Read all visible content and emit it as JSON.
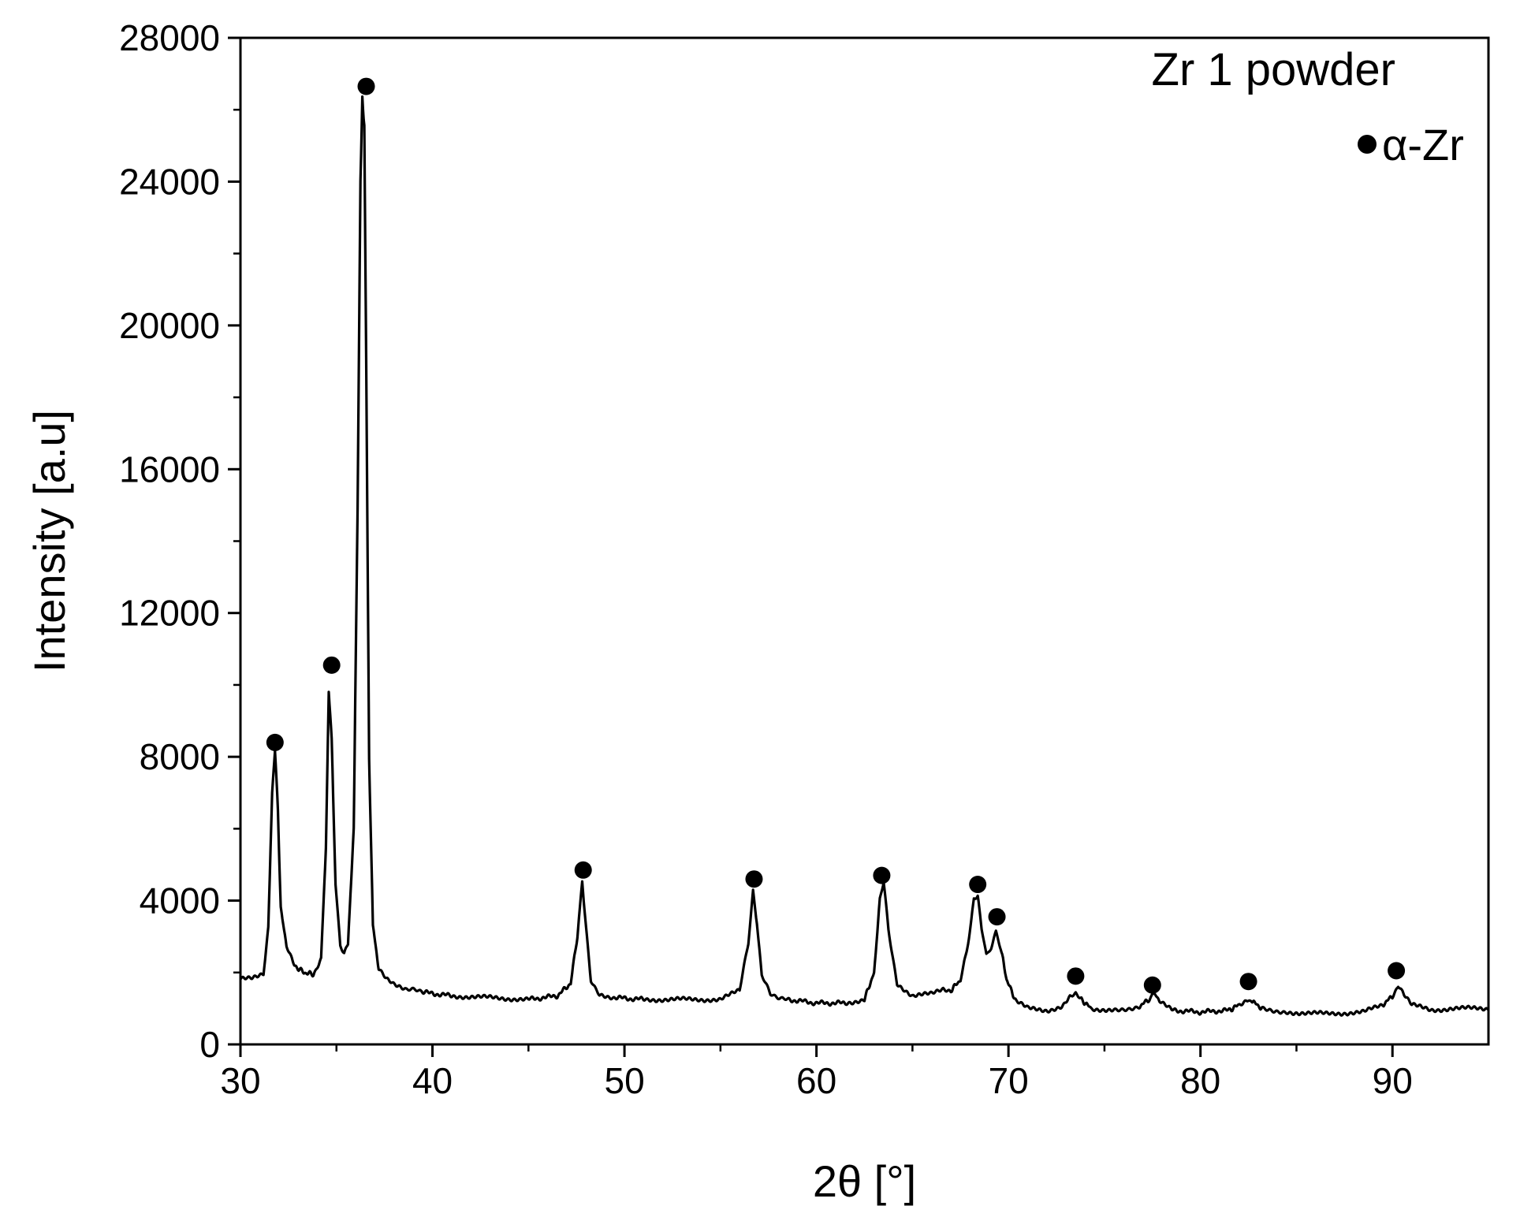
{
  "chart_data": {
    "type": "line",
    "title": "Zr 1 powder",
    "xlabel": "2θ [°]",
    "ylabel": "Intensity [a.u]",
    "xlim": [
      30,
      95
    ],
    "ylim": [
      0,
      28000
    ],
    "x_ticks": [
      30,
      40,
      50,
      60,
      70,
      80,
      90
    ],
    "y_ticks": [
      0,
      4000,
      8000,
      12000,
      16000,
      20000,
      24000,
      28000
    ],
    "grid": false,
    "legend": {
      "placement": "top-right",
      "marker": "●",
      "label": "α-Zr"
    },
    "series": [
      {
        "color": "#000000",
        "x": [
          30.0,
          30.6,
          31.2,
          31.45,
          31.65,
          31.8,
          31.95,
          32.1,
          32.4,
          32.8,
          33.3,
          33.8,
          34.2,
          34.45,
          34.6,
          34.75,
          34.95,
          35.2,
          35.4,
          35.6,
          35.9,
          36.1,
          36.25,
          36.35,
          36.45,
          36.55,
          36.7,
          36.9,
          37.2,
          37.6,
          38.0,
          38.6,
          39.5,
          41.0,
          43.0,
          45.0,
          46.5,
          47.2,
          47.55,
          47.8,
          48.0,
          48.25,
          48.7,
          49.5,
          51.0,
          53.0,
          55.0,
          56.0,
          56.45,
          56.7,
          56.9,
          57.15,
          57.6,
          58.5,
          60.0,
          61.5,
          62.5,
          63.0,
          63.3,
          63.5,
          63.75,
          64.2,
          65.0,
          66.0,
          66.6,
          67.0,
          67.5,
          67.9,
          68.2,
          68.4,
          68.6,
          68.85,
          69.1,
          69.35,
          69.6,
          69.9,
          70.4,
          71.0,
          72.0,
          72.8,
          73.2,
          73.5,
          73.8,
          74.3,
          75.5,
          76.8,
          77.3,
          77.6,
          77.9,
          78.5,
          80.0,
          81.5,
          82.0,
          82.4,
          82.7,
          83.2,
          84.5,
          86.5,
          88.5,
          89.5,
          90.0,
          90.3,
          90.6,
          91.0,
          92.0,
          93.0,
          94.0,
          95.0
        ],
        "y": [
          1800,
          1850,
          2000,
          3200,
          7000,
          8200,
          6500,
          3800,
          2700,
          2200,
          2000,
          1950,
          2400,
          5500,
          9800,
          8500,
          4500,
          2700,
          2500,
          2800,
          6000,
          15000,
          24000,
          26300,
          25500,
          19000,
          8000,
          3300,
          2100,
          1800,
          1650,
          1550,
          1450,
          1350,
          1300,
          1250,
          1350,
          1700,
          3000,
          4500,
          3200,
          1800,
          1400,
          1300,
          1250,
          1250,
          1250,
          1500,
          2800,
          4300,
          3400,
          1900,
          1400,
          1250,
          1150,
          1150,
          1250,
          2000,
          4000,
          4500,
          3200,
          1700,
          1350,
          1400,
          1550,
          1500,
          1800,
          2800,
          4000,
          4100,
          3200,
          2500,
          2700,
          3100,
          2700,
          1800,
          1200,
          1000,
          950,
          1050,
          1300,
          1450,
          1250,
          1000,
          950,
          1050,
          1250,
          1400,
          1200,
          950,
          900,
          950,
          1100,
          1250,
          1200,
          1000,
          900,
          850,
          900,
          1100,
          1350,
          1600,
          1400,
          1100,
          950,
          1000,
          1000,
          1000
        ]
      }
    ],
    "markers": [
      {
        "x": 31.8,
        "y": 8400
      },
      {
        "x": 34.75,
        "y": 10550
      },
      {
        "x": 36.55,
        "y": 26650
      },
      {
        "x": 47.85,
        "y": 4850
      },
      {
        "x": 56.75,
        "y": 4600
      },
      {
        "x": 63.4,
        "y": 4700
      },
      {
        "x": 68.4,
        "y": 4450
      },
      {
        "x": 69.4,
        "y": 3550
      },
      {
        "x": 73.5,
        "y": 1900
      },
      {
        "x": 77.5,
        "y": 1650
      },
      {
        "x": 82.5,
        "y": 1750
      },
      {
        "x": 90.2,
        "y": 2050
      }
    ]
  }
}
